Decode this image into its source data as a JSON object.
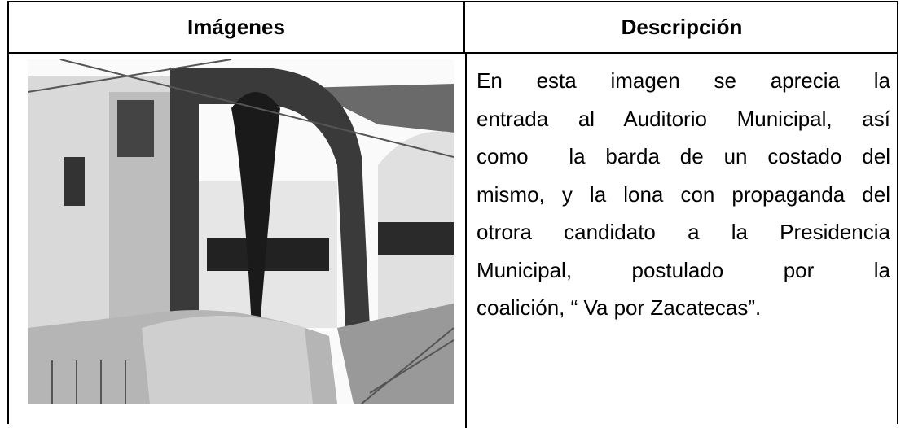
{
  "table": {
    "headers": [
      "Imágenes",
      "Descripción"
    ],
    "rows": [
      [
        {
          "lines": [
            "En esta imagen se aprecia la",
            "entrada al Auditorio Municipal, así",
            "como  la barda de un costado del",
            "mismo, y la lona con propaganda del",
            "otrora candidato a la Presidencia",
            "Municipal, postulado por la",
            "coalición, “ Va por Zacatecas”."
          ]
        }
      ]
    ]
  }
}
